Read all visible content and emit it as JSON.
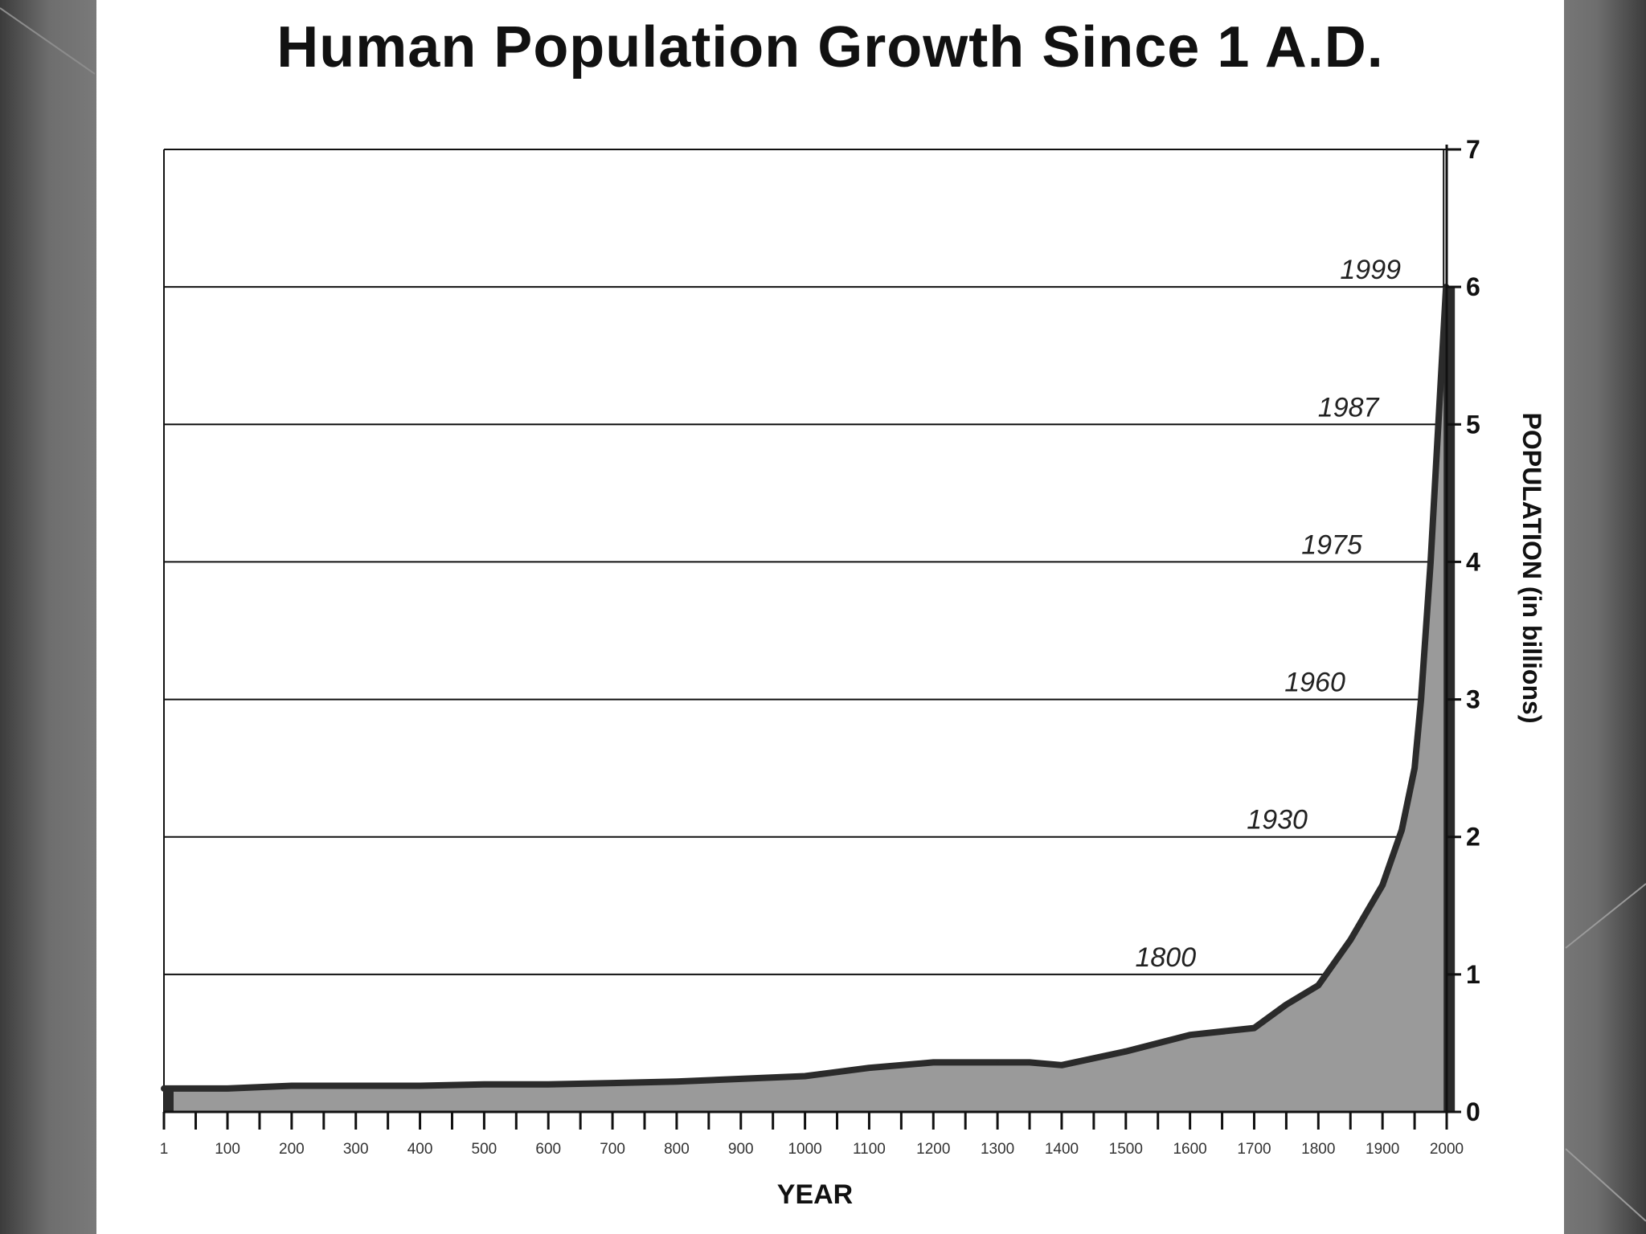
{
  "chart_data": {
    "type": "area",
    "title": "Human Population Growth Since 1 A.D.",
    "xlabel": "YEAR",
    "ylabel": "POPULATION (in billions)",
    "x_ticks": [
      1,
      100,
      200,
      300,
      400,
      500,
      600,
      700,
      800,
      900,
      1000,
      1100,
      1200,
      1300,
      1400,
      1500,
      1600,
      1700,
      1800,
      1900,
      2000
    ],
    "x_tick_labels": [
      "1",
      "100",
      "200",
      "300",
      "400",
      "500",
      "600",
      "700",
      "800",
      "900",
      "1000",
      "1100",
      "1200",
      "1300",
      "1400",
      "1500",
      "1600",
      "1700",
      "1800",
      "1900",
      "2000"
    ],
    "y_ticks": [
      0,
      1,
      2,
      3,
      4,
      5,
      6,
      7
    ],
    "y_tick_labels": [
      "0",
      "1",
      "2",
      "3",
      "4",
      "5",
      "6",
      "7"
    ],
    "xlim": [
      1,
      2000
    ],
    "ylim": [
      0,
      7
    ],
    "y_axis_side": "right",
    "grid": "horizontal",
    "series": [
      {
        "x": [
          1,
          100,
          200,
          300,
          400,
          500,
          600,
          700,
          800,
          900,
          1000,
          1100,
          1200,
          1300,
          1350,
          1400,
          1500,
          1600,
          1700,
          1750,
          1800,
          1850,
          1900,
          1930,
          1950,
          1960,
          1975,
          1987,
          1999
        ],
        "y": [
          0.17,
          0.17,
          0.19,
          0.19,
          0.19,
          0.2,
          0.2,
          0.21,
          0.22,
          0.24,
          0.26,
          0.32,
          0.36,
          0.36,
          0.36,
          0.34,
          0.44,
          0.56,
          0.61,
          0.78,
          0.92,
          1.25,
          1.65,
          2.05,
          2.5,
          3.0,
          4.0,
          5.0,
          6.0
        ]
      }
    ],
    "annotations": [
      {
        "text": "1800",
        "year": 1800,
        "level": 1
      },
      {
        "text": "1930",
        "year": 1930,
        "level": 2
      },
      {
        "text": "1960",
        "year": 1960,
        "level": 3
      },
      {
        "text": "1975",
        "year": 1975,
        "level": 4
      },
      {
        "text": "1987",
        "year": 1987,
        "level": 5
      },
      {
        "text": "1999",
        "year": 1999,
        "level": 6
      }
    ],
    "colors": {
      "fill": "#9a9a9a",
      "line": "#2b2b2b",
      "grid": "#111111",
      "axis": "#111111",
      "text": "#111111"
    }
  }
}
